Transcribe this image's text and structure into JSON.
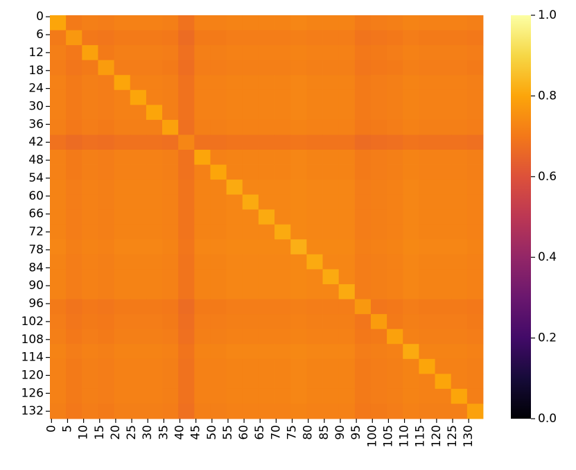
{
  "chart_data": {
    "type": "heatmap",
    "colormap": "inferno",
    "invert_y": true,
    "xlim": [
      0,
      135
    ],
    "ylim": [
      0,
      135
    ],
    "xbins": [
      0,
      5,
      10,
      15,
      20,
      25,
      30,
      35,
      40,
      45,
      50,
      55,
      60,
      65,
      70,
      75,
      80,
      85,
      90,
      95,
      100,
      105,
      110,
      115,
      120,
      125,
      130,
      135
    ],
    "ybins": [
      0,
      5,
      10,
      15,
      20,
      25,
      30,
      35,
      40,
      45,
      50,
      55,
      60,
      65,
      70,
      75,
      80,
      85,
      90,
      95,
      100,
      105,
      110,
      115,
      120,
      125,
      130,
      135
    ],
    "xticks": [
      0,
      5,
      10,
      15,
      20,
      25,
      30,
      35,
      40,
      45,
      50,
      55,
      60,
      65,
      70,
      75,
      80,
      85,
      90,
      95,
      100,
      105,
      110,
      115,
      120,
      125,
      130
    ],
    "yticks": [
      0,
      6,
      12,
      18,
      24,
      30,
      36,
      42,
      48,
      54,
      60,
      66,
      72,
      78,
      84,
      90,
      96,
      102,
      108,
      114,
      120,
      126,
      132
    ],
    "clim": [
      0,
      1
    ],
    "cticks": [
      {
        "value": 0,
        "label": "0.0"
      },
      0.2,
      0.4,
      0.6,
      0.8,
      {
        "value": 1,
        "label": "1.0"
      }
    ],
    "values": [
      [
        0.8,
        0.705,
        0.715,
        0.71,
        0.72,
        0.72,
        0.72,
        0.715,
        0.685,
        0.72,
        0.72,
        0.725,
        0.725,
        0.725,
        0.725,
        0.73,
        0.725,
        0.725,
        0.725,
        0.705,
        0.71,
        0.715,
        0.725,
        0.72,
        0.72,
        0.72,
        0.715
      ],
      [
        0.705,
        0.77,
        0.7,
        0.695,
        0.705,
        0.705,
        0.705,
        0.7,
        0.67,
        0.705,
        0.705,
        0.71,
        0.71,
        0.71,
        0.71,
        0.715,
        0.71,
        0.71,
        0.71,
        0.69,
        0.695,
        0.7,
        0.71,
        0.705,
        0.705,
        0.705,
        0.7
      ],
      [
        0.715,
        0.7,
        0.79,
        0.705,
        0.715,
        0.715,
        0.715,
        0.71,
        0.68,
        0.715,
        0.715,
        0.72,
        0.72,
        0.72,
        0.72,
        0.725,
        0.72,
        0.72,
        0.72,
        0.7,
        0.705,
        0.71,
        0.72,
        0.715,
        0.715,
        0.715,
        0.71
      ],
      [
        0.71,
        0.695,
        0.705,
        0.78,
        0.71,
        0.71,
        0.71,
        0.705,
        0.675,
        0.71,
        0.71,
        0.715,
        0.715,
        0.715,
        0.715,
        0.72,
        0.715,
        0.715,
        0.715,
        0.695,
        0.7,
        0.705,
        0.715,
        0.71,
        0.71,
        0.71,
        0.705
      ],
      [
        0.72,
        0.705,
        0.715,
        0.71,
        0.8,
        0.72,
        0.72,
        0.715,
        0.685,
        0.72,
        0.72,
        0.725,
        0.725,
        0.725,
        0.725,
        0.73,
        0.725,
        0.725,
        0.725,
        0.705,
        0.71,
        0.715,
        0.725,
        0.72,
        0.72,
        0.72,
        0.715
      ],
      [
        0.72,
        0.705,
        0.715,
        0.71,
        0.72,
        0.8,
        0.72,
        0.715,
        0.685,
        0.72,
        0.72,
        0.725,
        0.725,
        0.725,
        0.725,
        0.73,
        0.725,
        0.725,
        0.725,
        0.705,
        0.71,
        0.715,
        0.725,
        0.72,
        0.72,
        0.72,
        0.715
      ],
      [
        0.72,
        0.705,
        0.715,
        0.71,
        0.72,
        0.72,
        0.8,
        0.715,
        0.685,
        0.72,
        0.72,
        0.725,
        0.725,
        0.725,
        0.725,
        0.73,
        0.725,
        0.725,
        0.725,
        0.705,
        0.71,
        0.715,
        0.725,
        0.72,
        0.72,
        0.72,
        0.715
      ],
      [
        0.715,
        0.7,
        0.71,
        0.705,
        0.715,
        0.715,
        0.715,
        0.79,
        0.68,
        0.715,
        0.715,
        0.72,
        0.72,
        0.72,
        0.72,
        0.725,
        0.72,
        0.72,
        0.72,
        0.7,
        0.705,
        0.71,
        0.72,
        0.715,
        0.715,
        0.715,
        0.71
      ],
      [
        0.685,
        0.67,
        0.68,
        0.675,
        0.685,
        0.685,
        0.685,
        0.68,
        0.73,
        0.685,
        0.685,
        0.69,
        0.69,
        0.69,
        0.69,
        0.695,
        0.69,
        0.69,
        0.69,
        0.67,
        0.675,
        0.68,
        0.69,
        0.685,
        0.685,
        0.685,
        0.68
      ],
      [
        0.72,
        0.705,
        0.715,
        0.71,
        0.72,
        0.72,
        0.72,
        0.715,
        0.685,
        0.8,
        0.72,
        0.725,
        0.725,
        0.725,
        0.725,
        0.73,
        0.725,
        0.725,
        0.725,
        0.705,
        0.71,
        0.715,
        0.725,
        0.72,
        0.72,
        0.72,
        0.715
      ],
      [
        0.72,
        0.705,
        0.715,
        0.71,
        0.72,
        0.72,
        0.72,
        0.715,
        0.685,
        0.72,
        0.8,
        0.725,
        0.725,
        0.725,
        0.725,
        0.73,
        0.725,
        0.725,
        0.725,
        0.705,
        0.71,
        0.715,
        0.725,
        0.72,
        0.72,
        0.72,
        0.715
      ],
      [
        0.725,
        0.71,
        0.72,
        0.715,
        0.725,
        0.725,
        0.725,
        0.72,
        0.69,
        0.725,
        0.725,
        0.81,
        0.73,
        0.73,
        0.73,
        0.735,
        0.73,
        0.73,
        0.73,
        0.71,
        0.715,
        0.72,
        0.73,
        0.725,
        0.725,
        0.725,
        0.72
      ],
      [
        0.725,
        0.71,
        0.72,
        0.715,
        0.725,
        0.725,
        0.725,
        0.72,
        0.69,
        0.725,
        0.725,
        0.73,
        0.81,
        0.73,
        0.73,
        0.735,
        0.73,
        0.73,
        0.73,
        0.71,
        0.715,
        0.72,
        0.73,
        0.725,
        0.725,
        0.725,
        0.72
      ],
      [
        0.725,
        0.71,
        0.72,
        0.715,
        0.725,
        0.725,
        0.725,
        0.72,
        0.69,
        0.725,
        0.725,
        0.73,
        0.73,
        0.81,
        0.73,
        0.735,
        0.73,
        0.73,
        0.73,
        0.71,
        0.715,
        0.72,
        0.73,
        0.725,
        0.725,
        0.725,
        0.72
      ],
      [
        0.725,
        0.71,
        0.72,
        0.715,
        0.725,
        0.725,
        0.725,
        0.72,
        0.69,
        0.725,
        0.725,
        0.73,
        0.73,
        0.73,
        0.81,
        0.735,
        0.73,
        0.73,
        0.73,
        0.71,
        0.715,
        0.72,
        0.73,
        0.725,
        0.725,
        0.725,
        0.72
      ],
      [
        0.73,
        0.715,
        0.725,
        0.72,
        0.73,
        0.73,
        0.73,
        0.725,
        0.695,
        0.73,
        0.73,
        0.735,
        0.735,
        0.735,
        0.735,
        0.82,
        0.735,
        0.735,
        0.735,
        0.715,
        0.72,
        0.725,
        0.735,
        0.73,
        0.73,
        0.73,
        0.725
      ],
      [
        0.725,
        0.71,
        0.72,
        0.715,
        0.725,
        0.725,
        0.725,
        0.72,
        0.69,
        0.725,
        0.725,
        0.73,
        0.73,
        0.73,
        0.73,
        0.735,
        0.81,
        0.73,
        0.73,
        0.71,
        0.715,
        0.72,
        0.73,
        0.725,
        0.725,
        0.725,
        0.72
      ],
      [
        0.725,
        0.71,
        0.72,
        0.715,
        0.725,
        0.725,
        0.725,
        0.72,
        0.69,
        0.725,
        0.725,
        0.73,
        0.73,
        0.73,
        0.73,
        0.735,
        0.73,
        0.81,
        0.73,
        0.71,
        0.715,
        0.72,
        0.73,
        0.725,
        0.725,
        0.725,
        0.72
      ],
      [
        0.725,
        0.71,
        0.72,
        0.715,
        0.725,
        0.725,
        0.725,
        0.72,
        0.69,
        0.725,
        0.725,
        0.73,
        0.73,
        0.73,
        0.73,
        0.735,
        0.73,
        0.73,
        0.81,
        0.71,
        0.715,
        0.72,
        0.73,
        0.725,
        0.725,
        0.725,
        0.72
      ],
      [
        0.705,
        0.69,
        0.7,
        0.695,
        0.705,
        0.705,
        0.705,
        0.7,
        0.67,
        0.705,
        0.705,
        0.71,
        0.71,
        0.71,
        0.71,
        0.715,
        0.71,
        0.71,
        0.71,
        0.77,
        0.695,
        0.7,
        0.71,
        0.705,
        0.705,
        0.705,
        0.7
      ],
      [
        0.71,
        0.695,
        0.705,
        0.7,
        0.71,
        0.71,
        0.71,
        0.705,
        0.675,
        0.71,
        0.71,
        0.715,
        0.715,
        0.715,
        0.715,
        0.72,
        0.715,
        0.715,
        0.715,
        0.695,
        0.78,
        0.705,
        0.715,
        0.71,
        0.71,
        0.71,
        0.705
      ],
      [
        0.715,
        0.7,
        0.71,
        0.705,
        0.715,
        0.715,
        0.715,
        0.71,
        0.68,
        0.715,
        0.715,
        0.72,
        0.72,
        0.72,
        0.72,
        0.725,
        0.72,
        0.72,
        0.72,
        0.7,
        0.705,
        0.79,
        0.72,
        0.715,
        0.715,
        0.715,
        0.71
      ],
      [
        0.725,
        0.71,
        0.72,
        0.715,
        0.725,
        0.725,
        0.725,
        0.72,
        0.69,
        0.725,
        0.725,
        0.73,
        0.73,
        0.73,
        0.73,
        0.735,
        0.73,
        0.73,
        0.73,
        0.71,
        0.715,
        0.72,
        0.81,
        0.725,
        0.725,
        0.725,
        0.72
      ],
      [
        0.72,
        0.705,
        0.715,
        0.71,
        0.72,
        0.72,
        0.72,
        0.715,
        0.685,
        0.72,
        0.72,
        0.725,
        0.725,
        0.725,
        0.725,
        0.73,
        0.725,
        0.725,
        0.725,
        0.705,
        0.71,
        0.715,
        0.725,
        0.8,
        0.72,
        0.72,
        0.715
      ],
      [
        0.72,
        0.705,
        0.715,
        0.71,
        0.72,
        0.72,
        0.72,
        0.715,
        0.685,
        0.72,
        0.72,
        0.725,
        0.725,
        0.725,
        0.725,
        0.73,
        0.725,
        0.725,
        0.725,
        0.705,
        0.71,
        0.715,
        0.725,
        0.72,
        0.8,
        0.72,
        0.715
      ],
      [
        0.72,
        0.705,
        0.715,
        0.71,
        0.72,
        0.72,
        0.72,
        0.715,
        0.685,
        0.72,
        0.72,
        0.725,
        0.725,
        0.725,
        0.725,
        0.73,
        0.725,
        0.725,
        0.725,
        0.705,
        0.71,
        0.715,
        0.725,
        0.72,
        0.72,
        0.8,
        0.715
      ],
      [
        0.715,
        0.7,
        0.71,
        0.705,
        0.715,
        0.715,
        0.715,
        0.71,
        0.68,
        0.715,
        0.715,
        0.72,
        0.72,
        0.72,
        0.72,
        0.725,
        0.72,
        0.72,
        0.72,
        0.7,
        0.705,
        0.71,
        0.72,
        0.715,
        0.715,
        0.715,
        0.79
      ]
    ]
  }
}
